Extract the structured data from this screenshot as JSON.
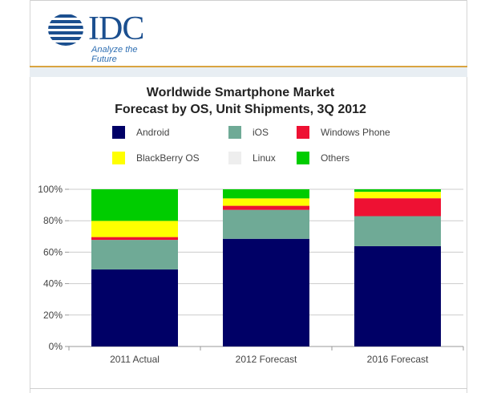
{
  "logo": {
    "word": "IDC",
    "tagline": "Analyze the Future"
  },
  "chart_data": {
    "type": "bar",
    "stacked": true,
    "title_line1": "Worldwide Smartphone Market",
    "title_line2": "Forecast by OS, Unit Shipments, 3Q 2012",
    "categories": [
      "2011 Actual",
      "2012 Forecast",
      "2016 Forecast"
    ],
    "yticks": [
      "0%",
      "20%",
      "40%",
      "60%",
      "80%",
      "100%"
    ],
    "ylim": [
      0,
      100
    ],
    "grid": true,
    "legend_position": "top",
    "series": [
      {
        "name": "Android",
        "color": "#000066",
        "values": [
          49,
          68.5,
          63.8
        ]
      },
      {
        "name": "iOS",
        "color": "#6faa96",
        "values": [
          18.8,
          18.4,
          19.1
        ]
      },
      {
        "name": "Windows Phone",
        "color": "#ee1133",
        "values": [
          1.8,
          2.6,
          11.4
        ]
      },
      {
        "name": "BlackBerry OS",
        "color": "#ffff00",
        "values": [
          10.3,
          4.7,
          4.1
        ]
      },
      {
        "name": "Linux",
        "color": "#eeeeee",
        "values": [
          0,
          0,
          0
        ]
      },
      {
        "name": "Others",
        "color": "#00cc00",
        "values": [
          20.1,
          5.8,
          1.6
        ]
      }
    ]
  }
}
